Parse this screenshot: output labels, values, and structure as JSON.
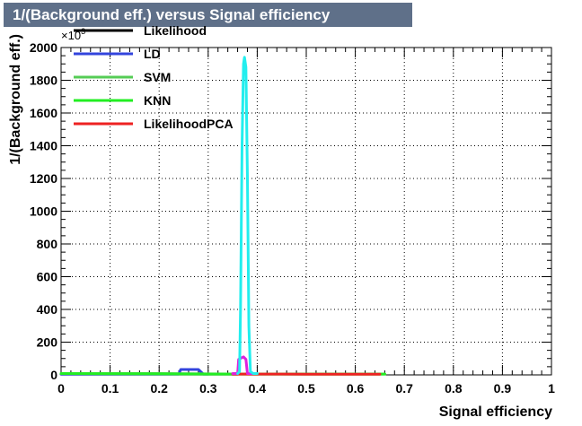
{
  "chart_data": {
    "type": "line",
    "title": "1/(Background eff.) versus Signal efficiency",
    "xlabel": "Signal efficiency",
    "ylabel": "1/(Background eff.)",
    "y_exponent_label": "×10",
    "y_exponent_sup": "3",
    "xlim": [
      0,
      1
    ],
    "ylim": [
      0,
      2000
    ],
    "x_ticks": [
      "0",
      "0.1",
      "0.2",
      "0.3",
      "0.4",
      "0.5",
      "0.6",
      "0.7",
      "0.8",
      "0.9",
      "1"
    ],
    "y_ticks": [
      "0",
      "200",
      "400",
      "600",
      "800",
      "1000",
      "1200",
      "1400",
      "1600",
      "1800",
      "2000"
    ],
    "grid": true,
    "legend_position": "top-left",
    "series": [
      {
        "name": "Likelihood",
        "color": "#000000",
        "points": [
          [
            0.0,
            5
          ],
          [
            0.1,
            5
          ],
          [
            0.2,
            5
          ],
          [
            0.3,
            5
          ],
          [
            0.36,
            5
          ]
        ]
      },
      {
        "name": "LD",
        "color": "#3344dd",
        "points": [
          [
            0.0,
            5
          ],
          [
            0.1,
            5
          ],
          [
            0.2,
            5
          ],
          [
            0.24,
            5
          ],
          [
            0.244,
            33
          ],
          [
            0.28,
            33
          ],
          [
            0.29,
            5
          ],
          [
            0.3,
            5
          ]
        ]
      },
      {
        "name": "SVM",
        "color": "#55cc55",
        "points": [
          [
            0.0,
            8
          ],
          [
            0.1,
            8
          ],
          [
            0.2,
            8
          ],
          [
            0.3,
            6
          ],
          [
            0.4,
            5
          ],
          [
            0.5,
            5
          ],
          [
            0.6,
            5
          ],
          [
            0.66,
            5
          ]
        ]
      },
      {
        "name": "KNN",
        "color": "#22ee22",
        "points": [
          [
            0.0,
            8
          ],
          [
            0.1,
            7
          ],
          [
            0.2,
            6
          ],
          [
            0.3,
            5
          ],
          [
            0.4,
            5
          ],
          [
            0.5,
            5
          ],
          [
            0.6,
            5
          ],
          [
            0.66,
            5
          ]
        ]
      },
      {
        "name": "LikelihoodPCA",
        "color": "#ee2222",
        "points": [
          [
            0.35,
            5
          ],
          [
            0.4,
            5
          ],
          [
            0.45,
            5
          ],
          [
            0.5,
            4
          ],
          [
            0.55,
            4
          ],
          [
            0.6,
            4
          ],
          [
            0.65,
            4
          ]
        ]
      },
      {
        "name": "",
        "color": "#dd22dd",
        "points": [
          [
            0.35,
            8
          ],
          [
            0.36,
            8
          ],
          [
            0.362,
            95
          ],
          [
            0.372,
            110
          ],
          [
            0.377,
            95
          ],
          [
            0.38,
            8
          ],
          [
            0.39,
            8
          ]
        ]
      },
      {
        "name": "",
        "color": "#22eeee",
        "points": [
          [
            0.36,
            8
          ],
          [
            0.364,
            20
          ],
          [
            0.366,
            400
          ],
          [
            0.369,
            1400
          ],
          [
            0.372,
            1900
          ],
          [
            0.374,
            1940
          ],
          [
            0.377,
            1880
          ],
          [
            0.38,
            1200
          ],
          [
            0.383,
            300
          ],
          [
            0.386,
            20
          ],
          [
            0.392,
            8
          ],
          [
            0.4,
            8
          ]
        ]
      }
    ]
  }
}
